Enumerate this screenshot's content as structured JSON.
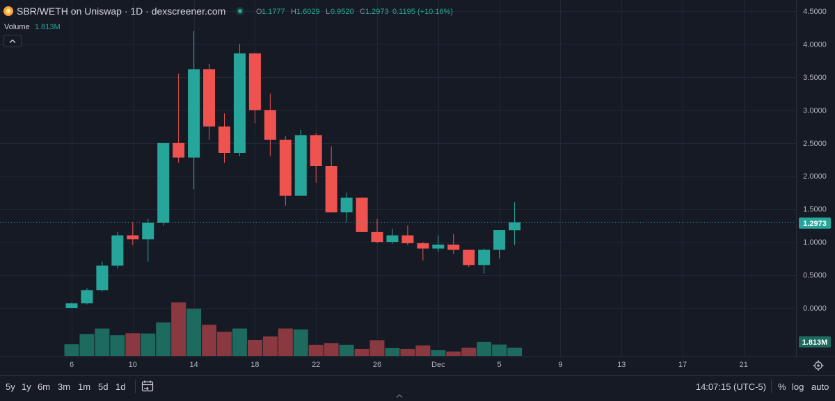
{
  "header": {
    "symbol_title": "SBR/WETH on Uniswap · 1D · dexscreener.com",
    "ohlc": [
      {
        "label": "O",
        "value": "1.1777"
      },
      {
        "label": "H",
        "value": "1.6029"
      },
      {
        "label": "L",
        "value": "0.9520"
      },
      {
        "label": "C",
        "value": "1.2973"
      }
    ],
    "change": "0.1195 (+10.16%)",
    "volume_label": "Volume",
    "volume_value": "1.813M",
    "collapse_icon": "chevron-up-icon"
  },
  "colors": {
    "up": "#26a69a",
    "down": "#ef5350",
    "up_volume": "#1d6b5f",
    "down_volume": "#8a3940",
    "background": "#161a25",
    "grid": "#232733",
    "price_line": "#26a69a"
  },
  "price_axis": {
    "ticks": [
      "4.5000",
      "4.0000",
      "3.5000",
      "3.0000",
      "2.5000",
      "2.0000",
      "1.5000",
      "1.0000",
      "0.5000",
      "0.0000"
    ],
    "last_price_label": "1.2973",
    "last_volume_label": "1.813M"
  },
  "time_axis": {
    "ticks": [
      "6",
      "10",
      "14",
      "18",
      "22",
      "26",
      "Dec",
      "5",
      "9",
      "13",
      "17",
      "21"
    ]
  },
  "chart_data": {
    "type": "candlestick",
    "yrange": [
      0,
      4.5
    ],
    "first_bar_date": "Nov 6",
    "candles": [
      {
        "date": "Nov 6",
        "o": 0.0,
        "h": 0.08,
        "l": 0.0,
        "c": 0.07
      },
      {
        "date": "Nov 7",
        "o": 0.07,
        "h": 0.3,
        "l": 0.05,
        "c": 0.27
      },
      {
        "date": "Nov 8",
        "o": 0.27,
        "h": 0.7,
        "l": 0.25,
        "c": 0.64
      },
      {
        "date": "Nov 9",
        "o": 0.64,
        "h": 1.15,
        "l": 0.6,
        "c": 1.1
      },
      {
        "date": "Nov 10",
        "o": 1.1,
        "h": 1.3,
        "l": 0.95,
        "c": 1.04
      },
      {
        "date": "Nov 11",
        "o": 1.04,
        "h": 1.35,
        "l": 0.7,
        "c": 1.29
      },
      {
        "date": "Nov 12",
        "o": 1.29,
        "h": 2.5,
        "l": 1.25,
        "c": 2.5
      },
      {
        "date": "Nov 13",
        "o": 2.5,
        "h": 3.55,
        "l": 2.2,
        "c": 2.28
      },
      {
        "date": "Nov 14",
        "o": 2.28,
        "h": 4.2,
        "l": 1.8,
        "c": 3.62
      },
      {
        "date": "Nov 15",
        "o": 3.62,
        "h": 3.7,
        "l": 2.55,
        "c": 2.75
      },
      {
        "date": "Nov 16",
        "o": 2.75,
        "h": 2.95,
        "l": 2.2,
        "c": 2.35
      },
      {
        "date": "Nov 17",
        "o": 2.35,
        "h": 4.0,
        "l": 2.3,
        "c": 3.86
      },
      {
        "date": "Nov 18",
        "o": 3.86,
        "h": 3.86,
        "l": 2.8,
        "c": 3.0
      },
      {
        "date": "Nov 19",
        "o": 3.0,
        "h": 3.25,
        "l": 2.3,
        "c": 2.55
      },
      {
        "date": "Nov 20",
        "o": 2.55,
        "h": 2.6,
        "l": 1.55,
        "c": 1.7
      },
      {
        "date": "Nov 21",
        "o": 1.7,
        "h": 2.7,
        "l": 1.7,
        "c": 2.62
      },
      {
        "date": "Nov 22",
        "o": 2.62,
        "h": 2.65,
        "l": 1.9,
        "c": 2.15
      },
      {
        "date": "Nov 23",
        "o": 2.15,
        "h": 2.45,
        "l": 1.45,
        "c": 1.45
      },
      {
        "date": "Nov 24",
        "o": 1.45,
        "h": 1.75,
        "l": 1.3,
        "c": 1.67
      },
      {
        "date": "Nov 25",
        "o": 1.67,
        "h": 1.67,
        "l": 1.15,
        "c": 1.15
      },
      {
        "date": "Nov 26",
        "o": 1.15,
        "h": 1.35,
        "l": 0.98,
        "c": 1.0
      },
      {
        "date": "Nov 27",
        "o": 1.0,
        "h": 1.2,
        "l": 0.97,
        "c": 1.1
      },
      {
        "date": "Nov 28",
        "o": 1.1,
        "h": 1.25,
        "l": 0.95,
        "c": 0.98
      },
      {
        "date": "Nov 29",
        "o": 0.98,
        "h": 1.0,
        "l": 0.72,
        "c": 0.9
      },
      {
        "date": "Nov 30",
        "o": 0.9,
        "h": 1.1,
        "l": 0.85,
        "c": 0.96
      },
      {
        "date": "Dec 1",
        "o": 0.96,
        "h": 1.12,
        "l": 0.82,
        "c": 0.88
      },
      {
        "date": "Dec 2",
        "o": 0.88,
        "h": 0.88,
        "l": 0.62,
        "c": 0.65
      },
      {
        "date": "Dec 3",
        "o": 0.65,
        "h": 0.9,
        "l": 0.52,
        "c": 0.88
      },
      {
        "date": "Dec 4",
        "o": 0.88,
        "h": 1.18,
        "l": 0.75,
        "c": 1.18
      },
      {
        "date": "Dec 5",
        "o": 1.1777,
        "h": 1.6029,
        "l": 0.952,
        "c": 1.2973
      }
    ],
    "volume_relative": [
      0.35,
      0.65,
      0.82,
      0.62,
      0.68,
      0.67,
      1.0,
      1.6,
      1.41,
      0.93,
      0.72,
      0.82,
      0.48,
      0.58,
      0.82,
      0.79,
      0.33,
      0.38,
      0.33,
      0.21,
      0.47,
      0.23,
      0.21,
      0.31,
      0.17,
      0.13,
      0.24,
      0.42,
      0.34,
      0.24
    ]
  },
  "bottom_bar": {
    "ranges": [
      "5y",
      "1y",
      "6m",
      "3m",
      "1m",
      "5d",
      "1d"
    ],
    "date_range_icon": "calendar-goto-icon",
    "time": "14:07:15 (UTC-5)",
    "percent_label": "%",
    "log_label": "log",
    "auto_label": "auto",
    "settings_icon": "gear-icon",
    "scroll_icon": "chevron-up-small-icon"
  }
}
